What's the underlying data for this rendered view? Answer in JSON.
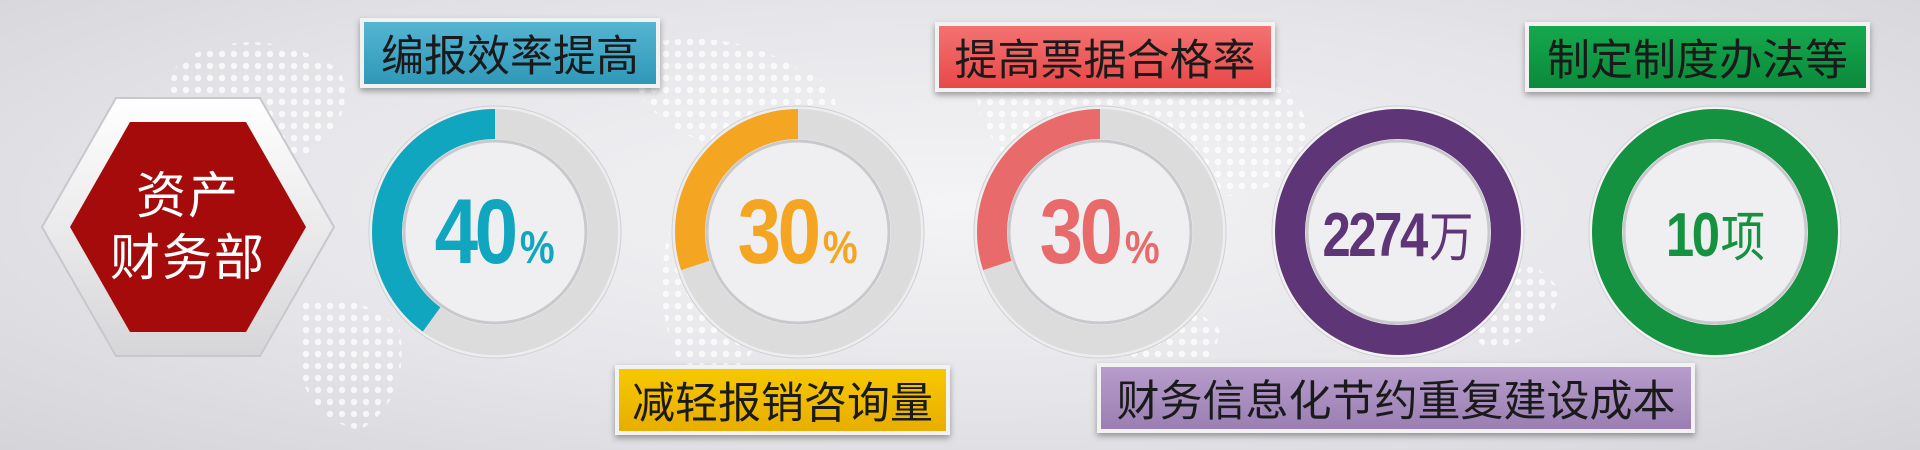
{
  "department": {
    "line1": "资产",
    "line2": "财务部"
  },
  "labels": {
    "efficiency": "编报效率提高",
    "workload": "减轻报销咨询量",
    "qualification": "提高票据合格率",
    "savings": "财务信息化节约重复建设成本",
    "rules": "制定制度办法等"
  },
  "metrics": [
    {
      "number": "40",
      "suffix": "%",
      "progress": 0.4,
      "color": "#11a6bf"
    },
    {
      "number": "30",
      "suffix": "%",
      "progress": 0.3,
      "color": "#f4a623"
    },
    {
      "number": "30",
      "suffix": "%",
      "progress": 0.3,
      "color": "#e96a6a"
    },
    {
      "number": "2274",
      "suffix": "万",
      "progress": 1.0,
      "color": "#5e3577"
    },
    {
      "number": "10",
      "suffix": "项",
      "progress": 1.0,
      "color": "#159240"
    }
  ],
  "colors": {
    "hexagon": "#a50b0b",
    "label_blue": "#3ea7c6",
    "label_yellow": "#f1bd00",
    "label_red": "#ef5a5a",
    "label_purple": "#a88bbf",
    "label_green": "#0f9a44",
    "track": "#dcdcdc"
  }
}
